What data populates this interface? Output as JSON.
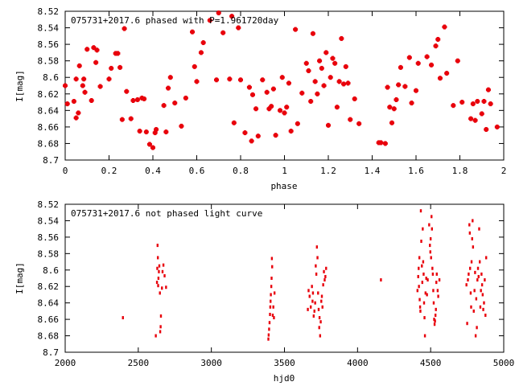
{
  "chart_data": [
    {
      "type": "scatter",
      "title": "075731+2017.6 phased with P=1.961720day",
      "xlabel": "phase",
      "ylabel": "I[mag]",
      "xlim": [
        0,
        2
      ],
      "ylim": [
        8.7,
        8.52
      ],
      "y_inverted": true,
      "grid": false,
      "marker_color": "#e8000b",
      "x_ticks": [
        0,
        0.2,
        0.4,
        0.6,
        0.8,
        1,
        1.2,
        1.4,
        1.6,
        1.8,
        2
      ],
      "x_tick_labels": [
        "0",
        "0.2",
        "0.4",
        "0.6",
        "0.8",
        "1",
        "1.2",
        "1.4",
        "1.6",
        "1.8",
        "2"
      ],
      "y_ticks": [
        8.52,
        8.54,
        8.56,
        8.58,
        8.6,
        8.62,
        8.64,
        8.66,
        8.68,
        8.7
      ],
      "y_tick_labels": [
        "8.52",
        "8.54",
        "8.56",
        "8.58",
        "8.6",
        "8.62",
        "8.64",
        "8.66",
        "8.68",
        "8.7"
      ],
      "points": [
        [
          0.0,
          8.61
        ],
        [
          0.01,
          8.632
        ],
        [
          0.04,
          8.629
        ],
        [
          0.05,
          8.602
        ],
        [
          0.05,
          8.649
        ],
        [
          0.06,
          8.643
        ],
        [
          0.065,
          8.586
        ],
        [
          0.08,
          8.61
        ],
        [
          0.085,
          8.602
        ],
        [
          0.09,
          8.618
        ],
        [
          0.1,
          8.566
        ],
        [
          0.12,
          8.628
        ],
        [
          0.13,
          8.564
        ],
        [
          0.14,
          8.582
        ],
        [
          0.145,
          8.567
        ],
        [
          0.16,
          8.611
        ],
        [
          0.2,
          8.602
        ],
        [
          0.21,
          8.589
        ],
        [
          0.23,
          8.571
        ],
        [
          0.24,
          8.571
        ],
        [
          0.25,
          8.588
        ],
        [
          0.26,
          8.651
        ],
        [
          0.27,
          8.541
        ],
        [
          0.28,
          8.617
        ],
        [
          0.3,
          8.65
        ],
        [
          0.31,
          8.628
        ],
        [
          0.33,
          8.627
        ],
        [
          0.34,
          8.665
        ],
        [
          0.35,
          8.625
        ],
        [
          0.36,
          8.626
        ],
        [
          0.37,
          8.666
        ],
        [
          0.385,
          8.681
        ],
        [
          0.4,
          8.685
        ],
        [
          0.41,
          8.667
        ],
        [
          0.415,
          8.663
        ],
        [
          0.45,
          8.634
        ],
        [
          0.46,
          8.666
        ],
        [
          0.47,
          8.613
        ],
        [
          0.48,
          8.6
        ],
        [
          0.5,
          8.631
        ],
        [
          0.53,
          8.659
        ],
        [
          0.55,
          8.625
        ],
        [
          0.58,
          8.545
        ],
        [
          0.59,
          8.587
        ],
        [
          0.6,
          8.605
        ],
        [
          0.62,
          8.57
        ],
        [
          0.63,
          8.558
        ],
        [
          0.66,
          8.531
        ],
        [
          0.69,
          8.603
        ],
        [
          0.7,
          8.522
        ],
        [
          0.72,
          8.546
        ],
        [
          0.75,
          8.602
        ],
        [
          0.76,
          8.526
        ],
        [
          0.77,
          8.655
        ],
        [
          0.79,
          8.54
        ],
        [
          0.8,
          8.603
        ],
        [
          0.82,
          8.667
        ],
        [
          0.84,
          8.612
        ],
        [
          0.85,
          8.677
        ],
        [
          0.855,
          8.621
        ],
        [
          0.87,
          8.638
        ],
        [
          0.88,
          8.671
        ],
        [
          0.9,
          8.603
        ],
        [
          0.92,
          8.618
        ],
        [
          0.93,
          8.638
        ],
        [
          0.94,
          8.635
        ],
        [
          0.95,
          8.614
        ],
        [
          0.96,
          8.67
        ],
        [
          0.98,
          8.64
        ],
        [
          0.99,
          8.6
        ],
        [
          1.0,
          8.643
        ],
        [
          1.01,
          8.636
        ],
        [
          1.02,
          8.607
        ],
        [
          1.03,
          8.665
        ],
        [
          1.05,
          8.542
        ],
        [
          1.06,
          8.656
        ],
        [
          1.08,
          8.619
        ],
        [
          1.1,
          8.583
        ],
        [
          1.11,
          8.592
        ],
        [
          1.12,
          8.629
        ],
        [
          1.13,
          8.547
        ],
        [
          1.14,
          8.605
        ],
        [
          1.15,
          8.62
        ],
        [
          1.16,
          8.58
        ],
        [
          1.17,
          8.589
        ],
        [
          1.18,
          8.61
        ],
        [
          1.19,
          8.57
        ],
        [
          1.2,
          8.658
        ],
        [
          1.21,
          8.6
        ],
        [
          1.22,
          8.577
        ],
        [
          1.23,
          8.583
        ],
        [
          1.24,
          8.636
        ],
        [
          1.25,
          8.605
        ],
        [
          1.26,
          8.553
        ],
        [
          1.27,
          8.608
        ],
        [
          1.28,
          8.587
        ],
        [
          1.29,
          8.607
        ],
        [
          1.3,
          8.651
        ],
        [
          1.32,
          8.626
        ],
        [
          1.34,
          8.656
        ],
        [
          1.43,
          8.679
        ],
        [
          1.44,
          8.679
        ],
        [
          1.46,
          8.68
        ],
        [
          1.47,
          8.612
        ],
        [
          1.48,
          8.636
        ],
        [
          1.49,
          8.655
        ],
        [
          1.5,
          8.638
        ],
        [
          1.51,
          8.627
        ],
        [
          1.52,
          8.609
        ],
        [
          1.53,
          8.588
        ],
        [
          1.55,
          8.611
        ],
        [
          1.57,
          8.576
        ],
        [
          1.58,
          8.631
        ],
        [
          1.6,
          8.616
        ],
        [
          1.61,
          8.583
        ],
        [
          1.65,
          8.575
        ],
        [
          1.67,
          8.585
        ],
        [
          1.69,
          8.562
        ],
        [
          1.7,
          8.554
        ],
        [
          1.71,
          8.601
        ],
        [
          1.73,
          8.539
        ],
        [
          1.74,
          8.595
        ],
        [
          1.77,
          8.634
        ],
        [
          1.79,
          8.58
        ],
        [
          1.81,
          8.63
        ],
        [
          1.85,
          8.65
        ],
        [
          1.86,
          8.632
        ],
        [
          1.87,
          8.652
        ],
        [
          1.88,
          8.629
        ],
        [
          1.9,
          8.644
        ],
        [
          1.91,
          8.629
        ],
        [
          1.92,
          8.663
        ],
        [
          1.93,
          8.615
        ],
        [
          1.94,
          8.632
        ],
        [
          1.97,
          8.66
        ]
      ]
    },
    {
      "type": "scatter",
      "title": "075731+2017.6 not phased light curve",
      "xlabel": "hjd0",
      "ylabel": "I[mag]",
      "xlim": [
        2000,
        5000
      ],
      "ylim": [
        8.7,
        8.52
      ],
      "y_inverted": true,
      "grid": false,
      "marker_color": "#e8000b",
      "x_ticks": [
        2000,
        2500,
        3000,
        3500,
        4000,
        4500,
        5000
      ],
      "x_tick_labels": [
        "2000",
        "2500",
        "3000",
        "3500",
        "4000",
        "4500",
        "5000"
      ],
      "y_ticks": [
        8.52,
        8.54,
        8.56,
        8.58,
        8.6,
        8.62,
        8.64,
        8.66,
        8.68,
        8.7
      ],
      "y_tick_labels": [
        "8.52",
        "8.54",
        "8.56",
        "8.58",
        "8.6",
        "8.62",
        "8.64",
        "8.66",
        "8.68",
        "8.7"
      ],
      "points": [
        [
          2395,
          8.658
        ],
        [
          2620,
          8.68
        ],
        [
          2628,
          8.615
        ],
        [
          2630,
          8.598
        ],
        [
          2632,
          8.57
        ],
        [
          2634,
          8.585
        ],
        [
          2636,
          8.619
        ],
        [
          2638,
          8.61
        ],
        [
          2641,
          8.602
        ],
        [
          2644,
          8.595
        ],
        [
          2648,
          8.628
        ],
        [
          2650,
          8.675
        ],
        [
          2653,
          8.669
        ],
        [
          2655,
          8.656
        ],
        [
          2662,
          8.622
        ],
        [
          2666,
          8.602
        ],
        [
          2672,
          8.594
        ],
        [
          2680,
          8.607
        ],
        [
          2690,
          8.621
        ],
        [
          3390,
          8.684
        ],
        [
          3392,
          8.679
        ],
        [
          3395,
          8.672
        ],
        [
          3398,
          8.664
        ],
        [
          3401,
          8.654
        ],
        [
          3403,
          8.645
        ],
        [
          3405,
          8.638
        ],
        [
          3407,
          8.63
        ],
        [
          3410,
          8.62
        ],
        [
          3412,
          8.61
        ],
        [
          3414,
          8.586
        ],
        [
          3416,
          8.596
        ],
        [
          3420,
          8.655
        ],
        [
          3424,
          8.645
        ],
        [
          3428,
          8.658
        ],
        [
          3432,
          8.628
        ],
        [
          3660,
          8.648
        ],
        [
          3665,
          8.625
        ],
        [
          3672,
          8.632
        ],
        [
          3680,
          8.645
        ],
        [
          3688,
          8.62
        ],
        [
          3692,
          8.638
        ],
        [
          3695,
          8.628
        ],
        [
          3700,
          8.656
        ],
        [
          3705,
          8.65
        ],
        [
          3710,
          8.64
        ],
        [
          3714,
          8.595
        ],
        [
          3718,
          8.605
        ],
        [
          3722,
          8.572
        ],
        [
          3726,
          8.585
        ],
        [
          3730,
          8.628
        ],
        [
          3734,
          8.648
        ],
        [
          3738,
          8.67
        ],
        [
          3740,
          8.658
        ],
        [
          3744,
          8.68
        ],
        [
          3748,
          8.663
        ],
        [
          3752,
          8.638
        ],
        [
          3756,
          8.632
        ],
        [
          3760,
          8.645
        ],
        [
          3765,
          8.618
        ],
        [
          3770,
          8.602
        ],
        [
          3775,
          8.612
        ],
        [
          3780,
          8.608
        ],
        [
          3785,
          8.598
        ],
        [
          4160,
          8.612
        ],
        [
          4410,
          8.625
        ],
        [
          4415,
          8.608
        ],
        [
          4418,
          8.598
        ],
        [
          4420,
          8.62
        ],
        [
          4423,
          8.585
        ],
        [
          4425,
          8.636
        ],
        [
          4428,
          8.645
        ],
        [
          4430,
          8.65
        ],
        [
          4433,
          8.528
        ],
        [
          4436,
          8.565
        ],
        [
          4440,
          8.595
        ],
        [
          4443,
          8.615
        ],
        [
          4446,
          8.55
        ],
        [
          4449,
          8.59
        ],
        [
          4452,
          8.605
        ],
        [
          4455,
          8.64
        ],
        [
          4458,
          8.658
        ],
        [
          4461,
          8.68
        ],
        [
          4465,
          8.628
        ],
        [
          4470,
          8.61
        ],
        [
          4475,
          8.63
        ],
        [
          4480,
          8.612
        ],
        [
          4490,
          8.545
        ],
        [
          4495,
          8.57
        ],
        [
          4498,
          8.578
        ],
        [
          4500,
          8.562
        ],
        [
          4503,
          8.585
        ],
        [
          4506,
          8.535
        ],
        [
          4509,
          8.55
        ],
        [
          4512,
          8.598
        ],
        [
          4515,
          8.605
        ],
        [
          4518,
          8.625
        ],
        [
          4521,
          8.64
        ],
        [
          4524,
          8.66
        ],
        [
          4527,
          8.666
        ],
        [
          4530,
          8.662
        ],
        [
          4533,
          8.655
        ],
        [
          4536,
          8.648
        ],
        [
          4539,
          8.615
        ],
        [
          4542,
          8.605
        ],
        [
          4548,
          8.625
        ],
        [
          4552,
          8.632
        ],
        [
          4560,
          8.612
        ],
        [
          4745,
          8.618
        ],
        [
          4750,
          8.665
        ],
        [
          4755,
          8.612
        ],
        [
          4760,
          8.605
        ],
        [
          4765,
          8.545
        ],
        [
          4768,
          8.555
        ],
        [
          4770,
          8.598
        ],
        [
          4774,
          8.628
        ],
        [
          4777,
          8.645
        ],
        [
          4780,
          8.59
        ],
        [
          4784,
          8.562
        ],
        [
          4787,
          8.54
        ],
        [
          4790,
          8.572
        ],
        [
          4795,
          8.65
        ],
        [
          4800,
          8.625
        ],
        [
          4804,
          8.603
        ],
        [
          4808,
          8.68
        ],
        [
          4812,
          8.635
        ],
        [
          4816,
          8.67
        ],
        [
          4820,
          8.612
        ],
        [
          4824,
          8.598
        ],
        [
          4828,
          8.608
        ],
        [
          4832,
          8.55
        ],
        [
          4836,
          8.59
        ],
        [
          4840,
          8.645
        ],
        [
          4844,
          8.625
        ],
        [
          4848,
          8.605
        ],
        [
          4852,
          8.618
        ],
        [
          4856,
          8.63
        ],
        [
          4860,
          8.648
        ],
        [
          4865,
          8.64
        ],
        [
          4870,
          8.612
        ],
        [
          4875,
          8.655
        ],
        [
          4880,
          8.585
        ]
      ]
    }
  ]
}
